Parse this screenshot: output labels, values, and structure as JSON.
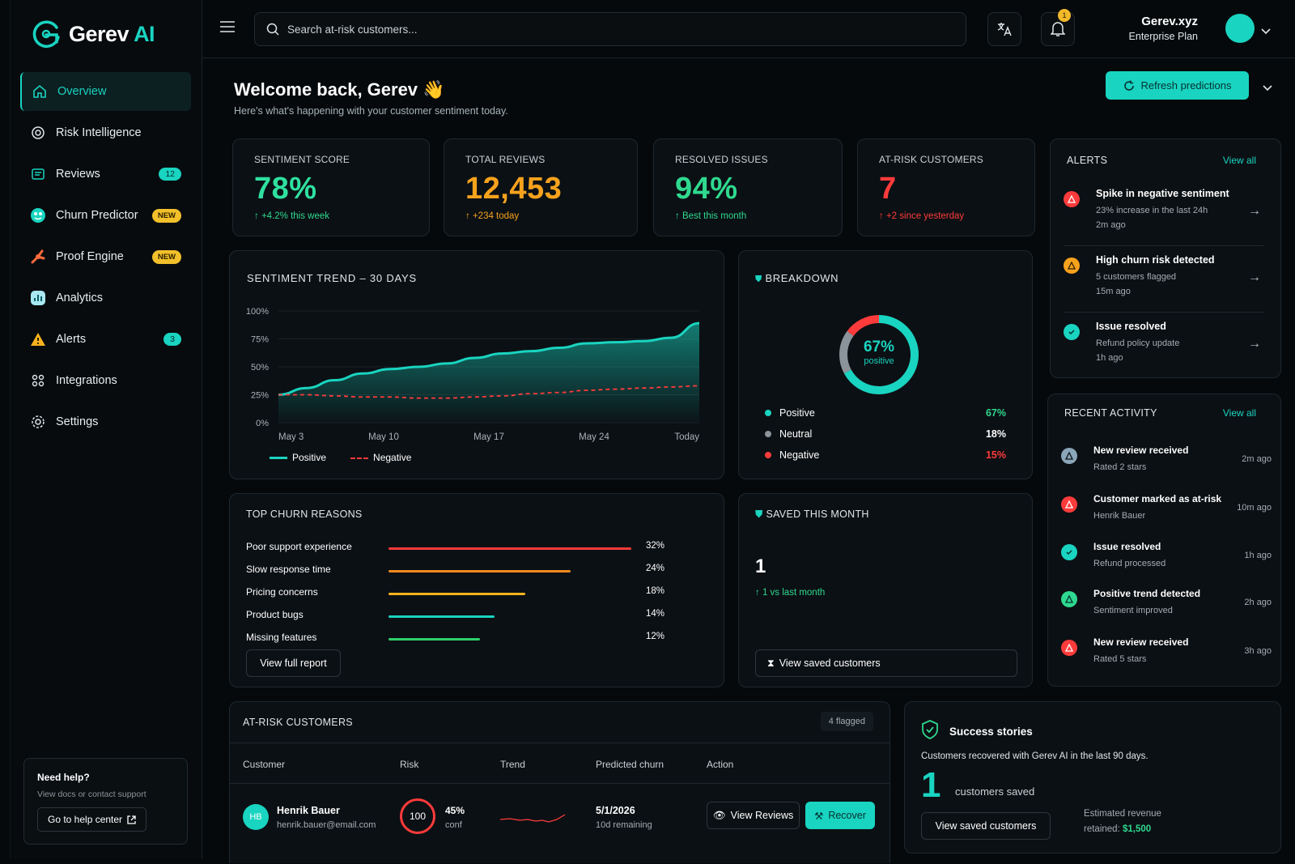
{
  "brand": {
    "name_main": "Gerev",
    "name_accent": "AI",
    "accent_color": "#19d4c0"
  },
  "sidebar": {
    "items": [
      {
        "label": "Overview",
        "icon": "home-icon",
        "active": true
      },
      {
        "label": "Risk Intelligence",
        "icon": "target-icon"
      },
      {
        "label": "Reviews",
        "icon": "reviews-icon",
        "badge": "12"
      },
      {
        "label": "Churn Predictor",
        "icon": "churn-icon",
        "badge_new": "NEW"
      },
      {
        "label": "Proof Engine",
        "icon": "proof-icon",
        "badge_new": "NEW"
      },
      {
        "label": "Analytics",
        "icon": "analytics-icon"
      },
      {
        "label": "Alerts",
        "icon": "alert-icon",
        "badge": "3"
      },
      {
        "label": "Integrations",
        "icon": "integrations-icon"
      },
      {
        "label": "Settings",
        "icon": "gear-icon"
      }
    ],
    "help": {
      "title": "Need help?",
      "subtitle": "View docs or contact support",
      "button": "Go to help center"
    }
  },
  "topbar": {
    "search_placeholder": "Search at-risk customers...",
    "notification_count": "1",
    "user_name": "Gerev.xyz",
    "user_plan": "Enterprise Plan"
  },
  "welcome": {
    "title": "Welcome back, Gerev 👋",
    "subtitle": "Here's what's happening with your customer sentiment today.",
    "refresh_label": "Refresh predictions"
  },
  "stats": [
    {
      "label": "SENTIMENT SCORE",
      "value": "78%",
      "sub": "+4.2% this week",
      "color": "#2fe0a0",
      "sub_color": "#2fd98f"
    },
    {
      "label": "TOTAL REVIEWS",
      "value": "12,453",
      "sub": "+234 today",
      "color": "#f7a21d",
      "sub_color": "#f7a21d"
    },
    {
      "label": "RESOLVED ISSUES",
      "value": "94%",
      "sub": "Best this month",
      "color": "#2fd98f",
      "sub_color": "#2fd98f"
    },
    {
      "label": "AT-RISK CUSTOMERS",
      "value": "7",
      "sub": "+2 since yesterday",
      "color": "#ff3b3b",
      "sub_color": "#ff3b3b"
    }
  ],
  "trend": {
    "title": "SENTIMENT TREND – 30 DAYS",
    "y_ticks": [
      "100%",
      "75%",
      "50%",
      "25%",
      "0%"
    ],
    "x_ticks": [
      "May 3",
      "May 10",
      "May 17",
      "May 24",
      "Today"
    ],
    "legend_positive": "Positive",
    "legend_negative": "Negative"
  },
  "chart_data": {
    "type": "area",
    "x": [
      0,
      2,
      4,
      6,
      8,
      10,
      12,
      14,
      16,
      18,
      20,
      22,
      24,
      26,
      28,
      30
    ],
    "x_labels": [
      "May 3",
      "May 10",
      "May 17",
      "May 24",
      "Today"
    ],
    "series": [
      {
        "name": "Positive",
        "values": [
          25,
          31,
          38,
          44,
          48,
          50,
          53,
          58,
          62,
          64,
          67,
          71,
          72,
          73,
          76,
          89
        ],
        "color": "#19d4c0"
      },
      {
        "name": "Negative",
        "values": [
          25,
          25,
          24,
          23,
          23,
          22,
          22,
          23,
          24,
          26,
          27,
          29,
          30,
          31,
          32,
          33
        ],
        "color": "#ff3b3b"
      }
    ],
    "ylim": [
      0,
      100
    ],
    "grid": true,
    "legend": "bottom"
  },
  "breakdown": {
    "title": "BREAKDOWN",
    "center_value": "67%",
    "center_label": "positive",
    "rows": [
      {
        "label": "Positive",
        "value": "67%",
        "pct": 67,
        "color": "#19d4c0"
      },
      {
        "label": "Neutral",
        "value": "18%",
        "pct": 18,
        "color": "#8a949a"
      },
      {
        "label": "Negative",
        "value": "15%",
        "pct": 15,
        "color": "#ff3b3b"
      }
    ]
  },
  "alerts": {
    "title": "ALERTS",
    "view_all": "View all",
    "items": [
      {
        "title": "Spike in negative sentiment",
        "sub": "23% increase in the last 24h",
        "time": "2m ago",
        "color": "#ff3b3b"
      },
      {
        "title": "High churn risk detected",
        "sub": "5 customers flagged",
        "time": "15m ago",
        "color": "#f7a21d"
      },
      {
        "title": "Issue resolved",
        "sub": "Refund policy update",
        "time": "1h ago",
        "color": "#19d4c0"
      }
    ]
  },
  "activity": {
    "title": "RECENT ACTIVITY",
    "view_all": "View all",
    "items": [
      {
        "title": "New review received",
        "sub": "Rated 2 stars",
        "time": "2m ago",
        "color": "#8aa6b8"
      },
      {
        "title": "Customer marked as at-risk",
        "sub": "Henrik Bauer",
        "time": "10m ago",
        "color": "#ff3b3b"
      },
      {
        "title": "Issue resolved",
        "sub": "Refund processed",
        "time": "1h ago",
        "color": "#19d4c0"
      },
      {
        "title": "Positive trend detected",
        "sub": "Sentiment improved",
        "time": "2h ago",
        "color": "#2fd98f"
      },
      {
        "title": "New review received",
        "sub": "Rated 5 stars",
        "time": "3h ago",
        "color": "#ff3b3b"
      }
    ]
  },
  "churn": {
    "title": "TOP CHURN REASONS",
    "reasons": [
      {
        "label": "Poor support experience",
        "value": "32%",
        "pct": 32,
        "color": "#ff3b3b"
      },
      {
        "label": "Slow response time",
        "value": "24%",
        "pct": 24,
        "color": "#f58a1f"
      },
      {
        "label": "Pricing concerns",
        "value": "18%",
        "pct": 18,
        "color": "#f7b21d"
      },
      {
        "label": "Product bugs",
        "value": "14%",
        "pct": 14,
        "color": "#19d4c0"
      },
      {
        "label": "Missing features",
        "value": "12%",
        "pct": 12,
        "color": "#2fd06b"
      }
    ],
    "button": "View full report"
  },
  "saved": {
    "title": "SAVED THIS MONTH",
    "value": "1",
    "sub": "1 vs last month",
    "button": "View saved customers"
  },
  "at_risk": {
    "title": "AT-RISK CUSTOMERS",
    "flagged": "4 flagged",
    "headers": [
      "Customer",
      "Risk",
      "Trend",
      "Predicted churn",
      "Action"
    ],
    "rows": [
      {
        "initials": "HB",
        "name": "Henrik Bauer",
        "email": "henrik.bauer@email.com",
        "risk": "100",
        "conf_value": "45%",
        "conf_label": "conf",
        "date": "5/1/2026",
        "remaining": "10d remaining",
        "view": "View Reviews",
        "recover": "Recover"
      }
    ]
  },
  "success": {
    "title": "Success stories",
    "sub": "Customers recovered with Gerev AI in the last 90 days.",
    "value": "1",
    "value_label": "customers saved",
    "button": "View saved customers",
    "revenue_label": "Estimated revenue",
    "revenue_prefix": "retained:",
    "revenue_value": "$1,500"
  }
}
